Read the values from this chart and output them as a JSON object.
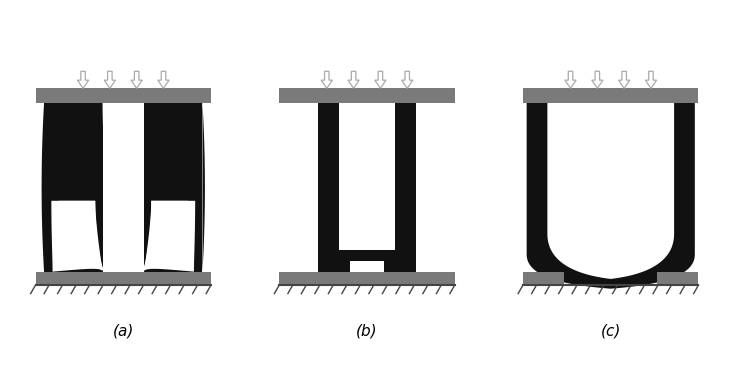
{
  "background_color": "#ffffff",
  "gray_color": "#7a7a7a",
  "black_color": "#111111",
  "label_color": "#000000",
  "labels": [
    "(a)",
    "(b)",
    "(c)"
  ],
  "fig_width": 7.34,
  "fig_height": 3.79,
  "dpi": 100
}
